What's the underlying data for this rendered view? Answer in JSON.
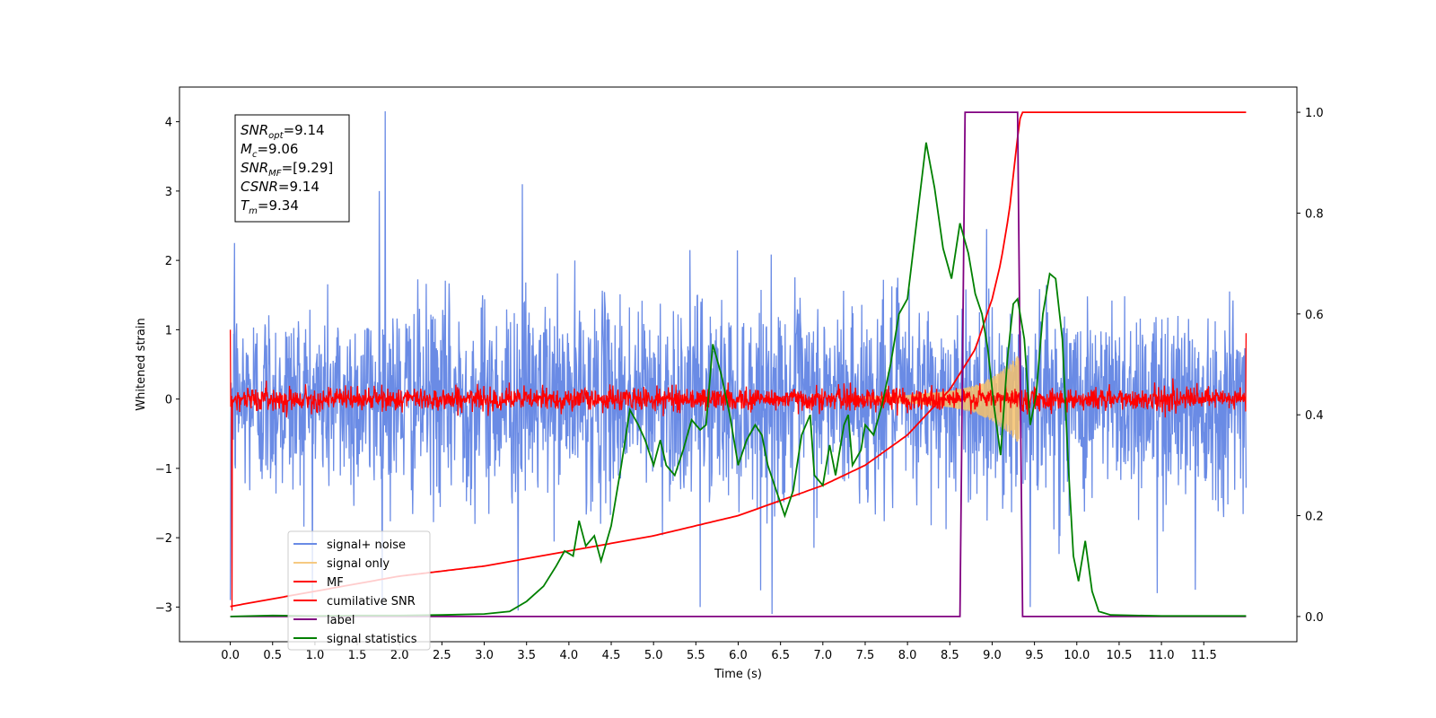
{
  "chart_data": {
    "type": "line",
    "xlabel": "Time (s)",
    "ylabel_left": "Whitened strain",
    "ylabel_right": "",
    "xlim": [
      -0.6,
      12.6
    ],
    "ylim_left": [
      -3.5,
      4.5
    ],
    "ylim_right": [
      -0.05,
      1.05
    ],
    "x_ticks": [
      0.0,
      0.5,
      1.0,
      1.5,
      2.0,
      2.5,
      3.0,
      3.5,
      4.0,
      4.5,
      5.0,
      5.5,
      6.0,
      6.5,
      7.0,
      7.5,
      8.0,
      8.5,
      9.0,
      9.5,
      10.0,
      10.5,
      11.0,
      11.5
    ],
    "x_tick_labels": [
      "0.0",
      "0.5",
      "1.0",
      "1.5",
      "2.0",
      "2.5",
      "3.0",
      "3.5",
      "4.0",
      "4.5",
      "5.0",
      "5.5",
      "6.0",
      "6.5",
      "7.0",
      "7.5",
      "8.0",
      "8.5",
      "9.0",
      "9.5",
      "10.0",
      "10.5",
      "11.0",
      "11.5"
    ],
    "y_left_ticks": [
      -3,
      -2,
      -1,
      0,
      1,
      2,
      3,
      4
    ],
    "y_left_tick_labels": [
      "−3",
      "−2",
      "−1",
      "0",
      "1",
      "2",
      "3",
      "4"
    ],
    "y_right_ticks": [
      0.0,
      0.2,
      0.4,
      0.6,
      0.8,
      1.0
    ],
    "y_right_tick_labels": [
      "0.0",
      "0.2",
      "0.4",
      "0.6",
      "0.8",
      "1.0"
    ],
    "grid": false,
    "legend_placement": "lower-left",
    "series": [
      {
        "name": "signal+ noise",
        "axis": "left",
        "color": "#6a8be5",
        "kind": "noise",
        "x_range": [
          0.0,
          12.0
        ],
        "typical_amplitude": 1.3,
        "peak_values": [
          {
            "x": 0.0,
            "y": -2.9
          },
          {
            "x": 0.05,
            "y": 2.25
          },
          {
            "x": 1.83,
            "y": 4.15
          },
          {
            "x": 1.76,
            "y": 3.0
          },
          {
            "x": 3.45,
            "y": 3.1
          },
          {
            "x": 3.4,
            "y": -3.05
          },
          {
            "x": 5.55,
            "y": -3.0
          },
          {
            "x": 6.4,
            "y": -3.1
          },
          {
            "x": 9.45,
            "y": -3.0
          },
          {
            "x": 10.95,
            "y": -2.8
          },
          {
            "x": 11.4,
            "y": -2.75
          }
        ]
      },
      {
        "name": "signal only",
        "axis": "left",
        "color": "#f5c16c",
        "kind": "chirp",
        "x_range": [
          7.5,
          9.32
        ],
        "envelope": [
          {
            "x": 7.5,
            "y": 0.03
          },
          {
            "x": 8.0,
            "y": 0.06
          },
          {
            "x": 8.5,
            "y": 0.12
          },
          {
            "x": 8.8,
            "y": 0.2
          },
          {
            "x": 9.0,
            "y": 0.32
          },
          {
            "x": 9.2,
            "y": 0.5
          },
          {
            "x": 9.32,
            "y": 0.65
          }
        ]
      },
      {
        "name": "MF",
        "axis": "left",
        "color": "#ff0000",
        "kind": "noise",
        "x_range": [
          0.0,
          12.0
        ],
        "typical_amplitude": 0.15,
        "peak_values": [
          {
            "x": 0.0,
            "y": 1.0
          },
          {
            "x": 0.02,
            "y": -3.05
          },
          {
            "x": 12.0,
            "y": 0.95
          }
        ]
      },
      {
        "name": "cumilative SNR",
        "axis": "right",
        "color": "#ff0000",
        "kind": "line",
        "points": [
          {
            "x": 0.0,
            "y": 0.02
          },
          {
            "x": 1.0,
            "y": 0.05
          },
          {
            "x": 2.0,
            "y": 0.08
          },
          {
            "x": 3.0,
            "y": 0.1
          },
          {
            "x": 4.0,
            "y": 0.13
          },
          {
            "x": 5.0,
            "y": 0.16
          },
          {
            "x": 6.0,
            "y": 0.2
          },
          {
            "x": 7.0,
            "y": 0.26
          },
          {
            "x": 7.5,
            "y": 0.3
          },
          {
            "x": 8.0,
            "y": 0.36
          },
          {
            "x": 8.5,
            "y": 0.45
          },
          {
            "x": 8.8,
            "y": 0.53
          },
          {
            "x": 9.0,
            "y": 0.63
          },
          {
            "x": 9.1,
            "y": 0.7
          },
          {
            "x": 9.2,
            "y": 0.8
          },
          {
            "x": 9.3,
            "y": 0.95
          },
          {
            "x": 9.34,
            "y": 1.0
          },
          {
            "x": 12.0,
            "y": 1.0
          }
        ]
      },
      {
        "name": "label",
        "axis": "right",
        "color": "#800080",
        "kind": "line",
        "points": [
          {
            "x": 0.0,
            "y": 0.0
          },
          {
            "x": 8.62,
            "y": 0.0
          },
          {
            "x": 8.68,
            "y": 1.0
          },
          {
            "x": 9.3,
            "y": 1.0
          },
          {
            "x": 9.36,
            "y": 0.0
          },
          {
            "x": 12.0,
            "y": 0.0
          }
        ]
      },
      {
        "name": "signal statistics",
        "axis": "right",
        "color": "#008000",
        "kind": "line",
        "points": [
          {
            "x": 0.0,
            "y": 0.0
          },
          {
            "x": 0.5,
            "y": 0.002
          },
          {
            "x": 1.0,
            "y": 0.001
          },
          {
            "x": 1.5,
            "y": 0.002
          },
          {
            "x": 2.0,
            "y": 0.002
          },
          {
            "x": 2.5,
            "y": 0.003
          },
          {
            "x": 3.0,
            "y": 0.005
          },
          {
            "x": 3.3,
            "y": 0.01
          },
          {
            "x": 3.5,
            "y": 0.03
          },
          {
            "x": 3.7,
            "y": 0.06
          },
          {
            "x": 3.85,
            "y": 0.1
          },
          {
            "x": 3.95,
            "y": 0.13
          },
          {
            "x": 4.05,
            "y": 0.12
          },
          {
            "x": 4.12,
            "y": 0.19
          },
          {
            "x": 4.2,
            "y": 0.14
          },
          {
            "x": 4.3,
            "y": 0.16
          },
          {
            "x": 4.38,
            "y": 0.11
          },
          {
            "x": 4.5,
            "y": 0.18
          },
          {
            "x": 4.62,
            "y": 0.3
          },
          {
            "x": 4.72,
            "y": 0.41
          },
          {
            "x": 4.82,
            "y": 0.38
          },
          {
            "x": 4.9,
            "y": 0.35
          },
          {
            "x": 5.0,
            "y": 0.3
          },
          {
            "x": 5.08,
            "y": 0.35
          },
          {
            "x": 5.15,
            "y": 0.3
          },
          {
            "x": 5.25,
            "y": 0.28
          },
          {
            "x": 5.35,
            "y": 0.33
          },
          {
            "x": 5.45,
            "y": 0.39
          },
          {
            "x": 5.55,
            "y": 0.37
          },
          {
            "x": 5.62,
            "y": 0.38
          },
          {
            "x": 5.7,
            "y": 0.54
          },
          {
            "x": 5.8,
            "y": 0.48
          },
          {
            "x": 5.9,
            "y": 0.4
          },
          {
            "x": 6.0,
            "y": 0.3
          },
          {
            "x": 6.1,
            "y": 0.35
          },
          {
            "x": 6.2,
            "y": 0.38
          },
          {
            "x": 6.28,
            "y": 0.36
          },
          {
            "x": 6.35,
            "y": 0.3
          },
          {
            "x": 6.45,
            "y": 0.25
          },
          {
            "x": 6.55,
            "y": 0.2
          },
          {
            "x": 6.65,
            "y": 0.25
          },
          {
            "x": 6.75,
            "y": 0.36
          },
          {
            "x": 6.85,
            "y": 0.4
          },
          {
            "x": 6.9,
            "y": 0.28
          },
          {
            "x": 7.0,
            "y": 0.26
          },
          {
            "x": 7.08,
            "y": 0.34
          },
          {
            "x": 7.15,
            "y": 0.28
          },
          {
            "x": 7.25,
            "y": 0.38
          },
          {
            "x": 7.3,
            "y": 0.4
          },
          {
            "x": 7.35,
            "y": 0.3
          },
          {
            "x": 7.45,
            "y": 0.33
          },
          {
            "x": 7.5,
            "y": 0.38
          },
          {
            "x": 7.6,
            "y": 0.36
          },
          {
            "x": 7.7,
            "y": 0.42
          },
          {
            "x": 7.8,
            "y": 0.5
          },
          {
            "x": 7.9,
            "y": 0.6
          },
          {
            "x": 8.0,
            "y": 0.63
          },
          {
            "x": 8.12,
            "y": 0.8
          },
          {
            "x": 8.22,
            "y": 0.94
          },
          {
            "x": 8.32,
            "y": 0.85
          },
          {
            "x": 8.42,
            "y": 0.73
          },
          {
            "x": 8.52,
            "y": 0.67
          },
          {
            "x": 8.62,
            "y": 0.78
          },
          {
            "x": 8.72,
            "y": 0.72
          },
          {
            "x": 8.8,
            "y": 0.64
          },
          {
            "x": 8.88,
            "y": 0.6
          },
          {
            "x": 8.95,
            "y": 0.53
          },
          {
            "x": 9.02,
            "y": 0.42
          },
          {
            "x": 9.1,
            "y": 0.32
          },
          {
            "x": 9.18,
            "y": 0.51
          },
          {
            "x": 9.25,
            "y": 0.62
          },
          {
            "x": 9.3,
            "y": 0.63
          },
          {
            "x": 9.38,
            "y": 0.55
          },
          {
            "x": 9.45,
            "y": 0.38
          },
          {
            "x": 9.52,
            "y": 0.44
          },
          {
            "x": 9.6,
            "y": 0.6
          },
          {
            "x": 9.68,
            "y": 0.68
          },
          {
            "x": 9.75,
            "y": 0.67
          },
          {
            "x": 9.83,
            "y": 0.55
          },
          {
            "x": 9.9,
            "y": 0.3
          },
          {
            "x": 9.96,
            "y": 0.12
          },
          {
            "x": 10.02,
            "y": 0.07
          },
          {
            "x": 10.1,
            "y": 0.15
          },
          {
            "x": 10.18,
            "y": 0.05
          },
          {
            "x": 10.26,
            "y": 0.01
          },
          {
            "x": 10.4,
            "y": 0.003
          },
          {
            "x": 11.0,
            "y": 0.001
          },
          {
            "x": 12.0,
            "y": 0.001
          }
        ]
      }
    ],
    "annotation_box": {
      "location": "top-left",
      "lines": [
        {
          "symbol": "SNR",
          "sub": "opt",
          "value": "=9.14"
        },
        {
          "symbol": "M",
          "sub": "c",
          "value": "=9.06"
        },
        {
          "symbol": "SNR",
          "sub": "MF",
          "value": "=[9.29]"
        },
        {
          "symbol": "CSNR",
          "sub": "",
          "value": "=9.14"
        },
        {
          "symbol": "T",
          "sub": "m",
          "value": "=9.34"
        }
      ]
    }
  }
}
